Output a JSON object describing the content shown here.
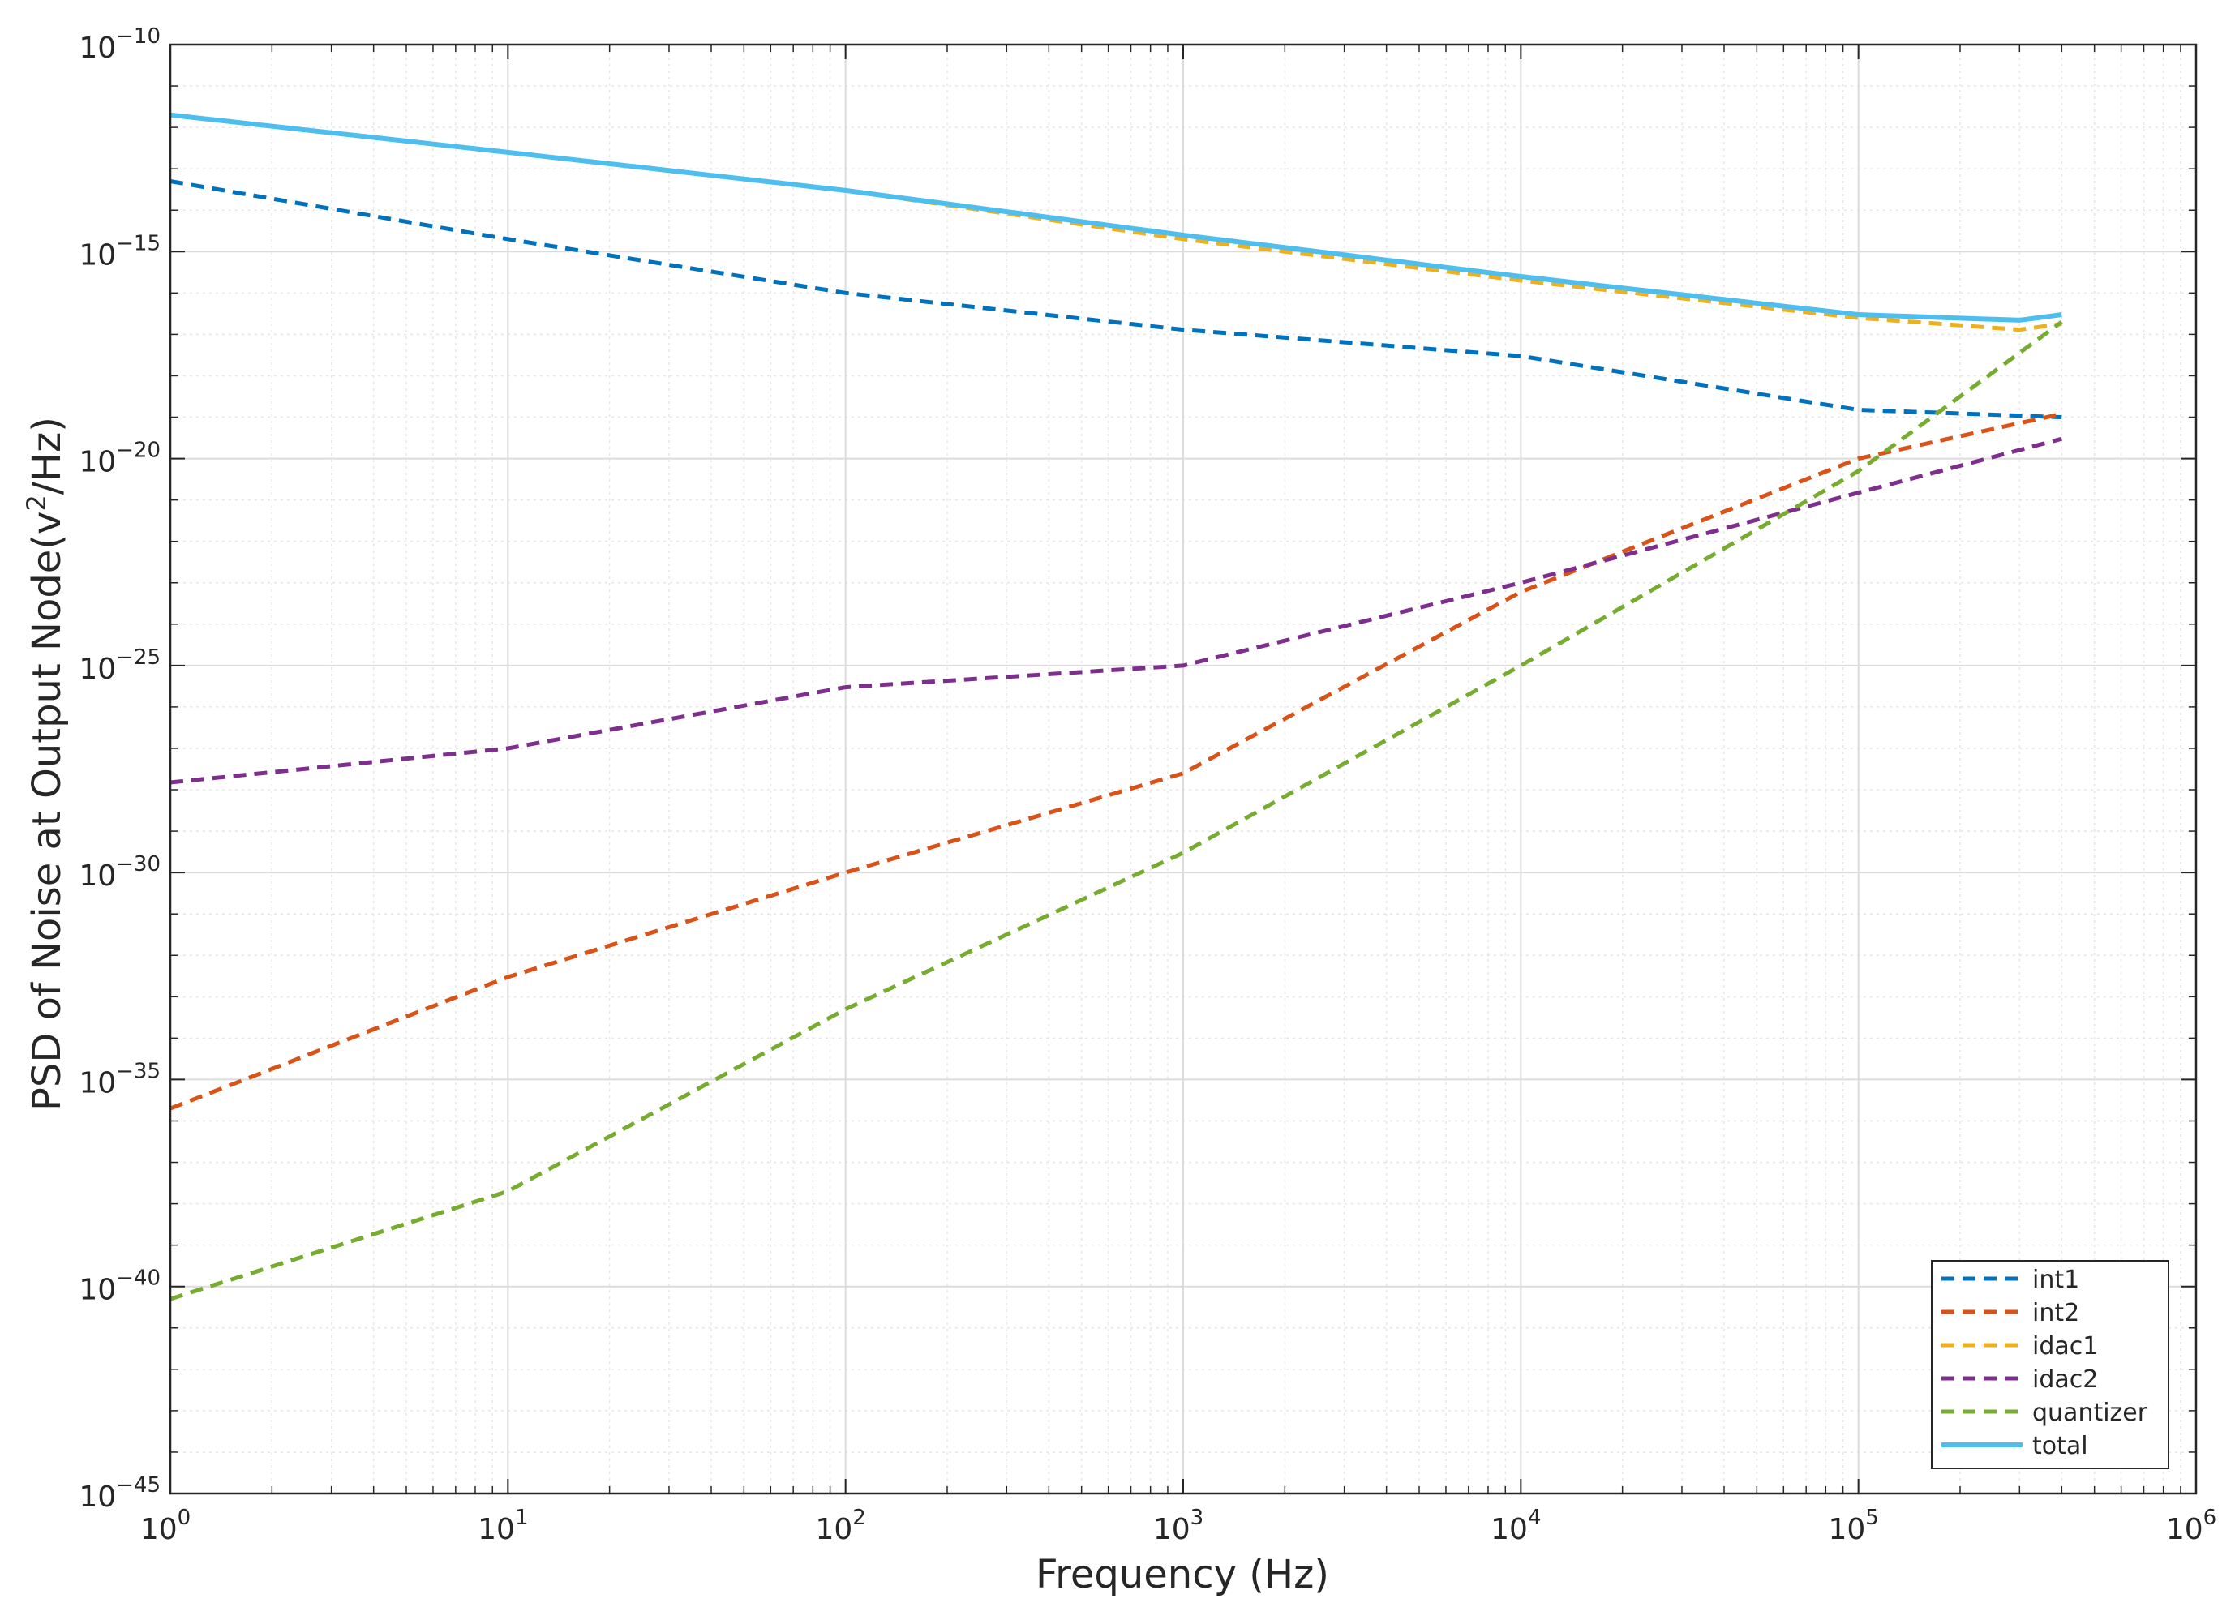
{
  "chart_data": {
    "type": "line",
    "xlabel": "Frequency (Hz)",
    "ylabel": "PSD of Noise at Output Node(v2/Hz)",
    "xscale": "log",
    "yscale": "log",
    "xlim": [
      1,
      1000000
    ],
    "ylim": [
      1e-45,
      1e-10
    ],
    "x_tick_exponents": [
      0,
      1,
      2,
      3,
      4,
      5,
      6
    ],
    "y_tick_exponents": [
      -10,
      -15,
      -20,
      -25,
      -30,
      -35,
      -40,
      -45
    ],
    "grid": "on (major and minor)",
    "legend_position": "bottom-right",
    "series": [
      {
        "name": "int1",
        "style": "dashed",
        "color": "#0072BD",
        "x": [
          1,
          10,
          100,
          1000,
          10000,
          100000,
          400000
        ],
        "y": [
          5e-14,
          2e-15,
          1e-16,
          1.3e-17,
          3e-18,
          1.5e-19,
          1e-19
        ]
      },
      {
        "name": "int2",
        "style": "dashed",
        "color": "#D95319",
        "x": [
          1,
          10,
          100,
          1000,
          10000,
          100000,
          400000
        ],
        "y": [
          2e-36,
          3e-33,
          1e-30,
          2.5e-28,
          6e-24,
          1e-20,
          1.2e-19
        ]
      },
      {
        "name": "idac1",
        "style": "dashed",
        "color": "#EDB120",
        "x": [
          1,
          10,
          100,
          1000,
          10000,
          100000,
          300000,
          400000
        ],
        "y": [
          2e-12,
          2.5e-13,
          3e-14,
          2e-15,
          2e-16,
          2.5e-17,
          1.3e-17,
          1.8e-17
        ]
      },
      {
        "name": "idac2",
        "style": "dashed",
        "color": "#7E2F8E",
        "x": [
          1,
          10,
          100,
          1000,
          10000,
          100000,
          400000
        ],
        "y": [
          1.5e-28,
          1e-27,
          3e-26,
          1e-25,
          1e-23,
          1.5e-21,
          3e-20
        ]
      },
      {
        "name": "quantizer",
        "style": "dashed",
        "color": "#77AC30",
        "x": [
          1,
          10,
          100,
          1000,
          10000,
          100000,
          400000
        ],
        "y": [
          5e-41,
          2e-38,
          5e-34,
          3e-30,
          1e-25,
          5e-21,
          2e-17
        ]
      },
      {
        "name": "total",
        "style": "solid",
        "color": "#4DBEEE",
        "x": [
          1,
          10,
          100,
          1000,
          10000,
          100000,
          300000,
          400000
        ],
        "y": [
          2e-12,
          2.5e-13,
          3e-14,
          2.5e-15,
          2.5e-16,
          3e-17,
          2.2e-17,
          3e-17
        ]
      }
    ]
  }
}
